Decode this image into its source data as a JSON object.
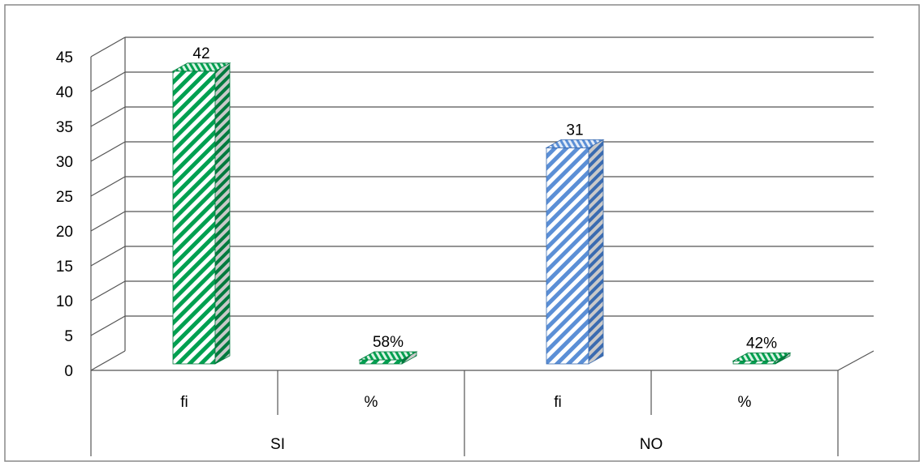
{
  "chart_data": {
    "type": "bar",
    "title": "",
    "xlabel": "",
    "ylabel": "",
    "ylim": [
      0,
      45
    ],
    "yticks": [
      0,
      5,
      10,
      15,
      20,
      25,
      30,
      35,
      40,
      45
    ],
    "grid": true,
    "legend": "none",
    "groups": [
      "SI",
      "NO"
    ],
    "categories": [
      "fi",
      "%",
      "fi",
      "%"
    ],
    "values": [
      42,
      0.58,
      31,
      0.42
    ],
    "data_labels": [
      "42",
      "58%",
      "31",
      "42%"
    ],
    "colors": {
      "SI_fi": "#00a050",
      "SI_pct": "#00a050",
      "NO_fi": "#5b8fd6",
      "NO_pct": "#00a050"
    }
  }
}
